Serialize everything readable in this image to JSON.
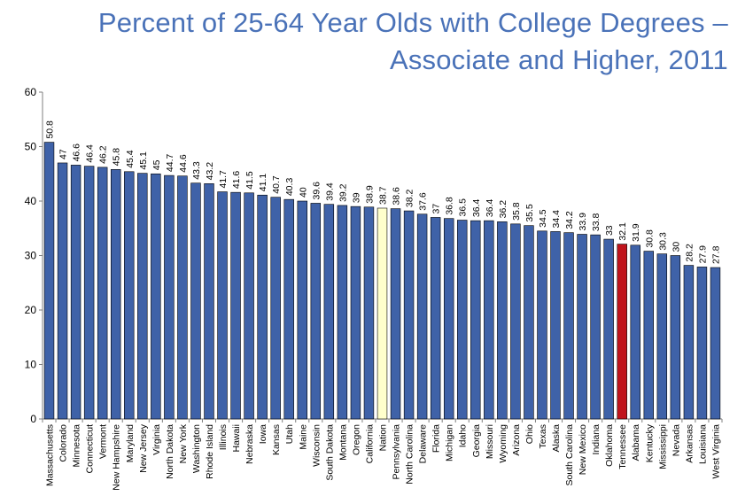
{
  "title": {
    "line1": "Percent of 25-64 Year Olds with College Degrees –",
    "line2": "Associate and Higher, 2011"
  },
  "colors": {
    "bar": "#3f62a8",
    "nation": "#ffffcc",
    "highlight": "#c0141c",
    "title": "#4a72b8"
  },
  "chart_data": {
    "type": "bar",
    "title": "Percent of 25-64 Year Olds with College Degrees – Associate and Higher, 2011",
    "xlabel": "",
    "ylabel": "",
    "ylim": [
      0,
      60
    ],
    "yticks": [
      0,
      10,
      20,
      30,
      40,
      50,
      60
    ],
    "grid": false,
    "legend": "none",
    "categories": [
      "Massachusetts",
      "Colorado",
      "Minnesota",
      "Connecticut",
      "Vermont",
      "New Hampshire",
      "Maryland",
      "New Jersey",
      "Virginia",
      "North Dakota",
      "New York",
      "Washington",
      "Rhode Island",
      "Illinois",
      "Hawaii",
      "Nebraska",
      "Iowa",
      "Kansas",
      "Utah",
      "Maine",
      "Wisconsin",
      "South Dakota",
      "Montana",
      "Oregon",
      "California",
      "Nation",
      "Pennsylvania",
      "North Carolina",
      "Delaware",
      "Florida",
      "Michigan",
      "Idaho",
      "Georgia",
      "Missouri",
      "Wyoming",
      "Arizona",
      "Ohio",
      "Texas",
      "Alaska",
      "South Carolina",
      "New Mexico",
      "Indiana",
      "Oklahoma",
      "Tennessee",
      "Alabama",
      "Kentucky",
      "Mississippi",
      "Nevada",
      "Arkansas",
      "Louisiana",
      "West Virginia"
    ],
    "values": [
      50.8,
      47,
      46.6,
      46.4,
      46.2,
      45.8,
      45.4,
      45.1,
      45,
      44.7,
      44.6,
      43.3,
      43.2,
      41.7,
      41.6,
      41.5,
      41.1,
      40.7,
      40.3,
      40,
      39.6,
      39.4,
      39.2,
      39,
      38.9,
      38.7,
      38.6,
      38.2,
      37.6,
      37,
      36.8,
      36.5,
      36.4,
      36.4,
      36.2,
      35.8,
      35.5,
      34.5,
      34.4,
      34.2,
      33.9,
      33.8,
      33,
      32.1,
      31.9,
      30.8,
      30.3,
      30,
      28.2,
      27.9,
      27.8
    ],
    "data_labels": [
      "50.8",
      "47",
      "46.6",
      "46.4",
      "46.2",
      "45.8",
      "45.4",
      "45.1",
      "45",
      "44.7",
      "44.6",
      "43.3",
      "43.2",
      "41.7",
      "41.6",
      "41.5",
      "41.1",
      "40.7",
      "40.3",
      "40",
      "39.6",
      "39.4",
      "39.2",
      "39",
      "38.9",
      "38.7",
      "38.6",
      "38.2",
      "37.6",
      "37",
      "36.8",
      "36.5",
      "36.4",
      "36.4",
      "36.2",
      "35.8",
      "35.5",
      "34.5",
      "34.4",
      "34.2",
      "33.9",
      "33.8",
      "33",
      "32.1",
      "31.9",
      "30.8",
      "30.3",
      "30",
      "28.2",
      "27.9",
      "27.8"
    ],
    "special": {
      "Nation": "nation",
      "Tennessee": "highlight"
    }
  }
}
